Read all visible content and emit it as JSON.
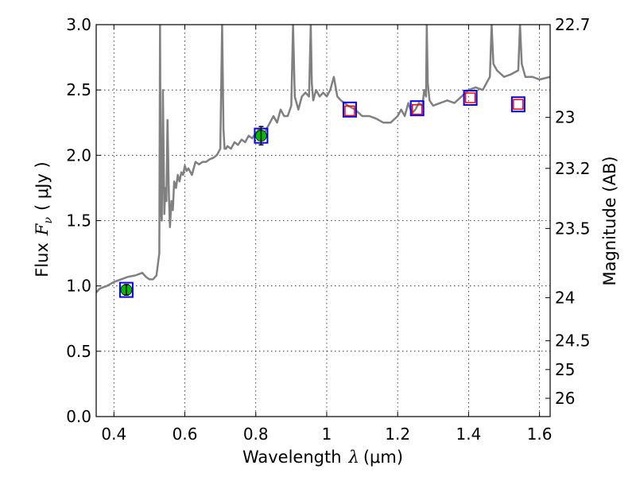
{
  "chart_data": {
    "type": "line",
    "xlabel": "Wavelength",
    "xlabel_symbol": "λ",
    "xlabel_unit": "(μm)",
    "ylabel": "Flux",
    "ylabel_symbol": "F",
    "ylabel_subscript": "ν",
    "ylabel_unit": "( μJy )",
    "y2label": "Magnitude (AB)",
    "xlim": [
      0.35,
      1.63
    ],
    "ylim": [
      0.0,
      3.0
    ],
    "grid": true,
    "x_ticks": [
      0.4,
      0.6,
      0.8,
      1.0,
      1.2,
      1.4,
      1.6
    ],
    "x_tick_labels": [
      "0.4",
      "0.6",
      "0.8",
      "1",
      "1.2",
      "1.4",
      "1.6"
    ],
    "y_ticks": [
      0.0,
      0.5,
      1.0,
      1.5,
      2.0,
      2.5,
      3.0
    ],
    "y_tick_labels": [
      "0.0",
      "0.5",
      "1.0",
      "1.5",
      "2.0",
      "2.5",
      "3.0"
    ],
    "y2_ticks": [
      {
        "label": "22.7",
        "flux": 3.0
      },
      {
        "label": "23",
        "flux": 2.29
      },
      {
        "label": "23.2",
        "flux": 1.9
      },
      {
        "label": "23.5",
        "flux": 1.44
      },
      {
        "label": "24",
        "flux": 0.91
      },
      {
        "label": "24.5",
        "flux": 0.58
      },
      {
        "label": "25",
        "flux": 0.36
      },
      {
        "label": "26",
        "flux": 0.14
      }
    ],
    "series": [
      {
        "style": "model-spectrum",
        "color": "#808080",
        "x": [
          0.35,
          0.36,
          0.38,
          0.4,
          0.42,
          0.44,
          0.46,
          0.48,
          0.49,
          0.5,
          0.51,
          0.52,
          0.528,
          0.53,
          0.532,
          0.535,
          0.538,
          0.542,
          0.545,
          0.548,
          0.551,
          0.555,
          0.558,
          0.562,
          0.566,
          0.57,
          0.575,
          0.58,
          0.585,
          0.59,
          0.595,
          0.6,
          0.605,
          0.61,
          0.62,
          0.63,
          0.64,
          0.65,
          0.66,
          0.67,
          0.68,
          0.69,
          0.7,
          0.705,
          0.709,
          0.712,
          0.716,
          0.72,
          0.73,
          0.74,
          0.75,
          0.76,
          0.77,
          0.78,
          0.79,
          0.8,
          0.81,
          0.82,
          0.83,
          0.84,
          0.85,
          0.86,
          0.87,
          0.88,
          0.89,
          0.9,
          0.905,
          0.91,
          0.915,
          0.92,
          0.93,
          0.94,
          0.95,
          0.955,
          0.958,
          0.962,
          0.97,
          0.98,
          0.99,
          1.0,
          1.01,
          1.02,
          1.03,
          1.04,
          1.05,
          1.06,
          1.08,
          1.1,
          1.12,
          1.14,
          1.16,
          1.18,
          1.2,
          1.21,
          1.22,
          1.23,
          1.24,
          1.25,
          1.26,
          1.27,
          1.275,
          1.28,
          1.282,
          1.285,
          1.29,
          1.3,
          1.32,
          1.34,
          1.36,
          1.38,
          1.4,
          1.42,
          1.44,
          1.45,
          1.46,
          1.465,
          1.47,
          1.48,
          1.5,
          1.52,
          1.54,
          1.545,
          1.55,
          1.56,
          1.58,
          1.6,
          1.63
        ],
        "values": [
          0.95,
          0.98,
          1.0,
          1.03,
          1.05,
          1.07,
          1.08,
          1.1,
          1.07,
          1.05,
          1.05,
          1.08,
          1.25,
          3.0,
          1.6,
          1.5,
          2.5,
          1.55,
          1.75,
          1.65,
          2.27,
          1.7,
          1.45,
          1.65,
          1.58,
          1.8,
          1.75,
          1.85,
          1.8,
          1.87,
          1.85,
          1.92,
          1.88,
          1.9,
          1.85,
          1.95,
          1.93,
          1.95,
          1.95,
          1.97,
          1.98,
          2.0,
          2.05,
          3.0,
          2.2,
          2.05,
          2.05,
          2.07,
          2.05,
          2.1,
          2.08,
          2.12,
          2.1,
          2.15,
          2.13,
          2.17,
          2.2,
          2.15,
          2.2,
          2.25,
          2.3,
          2.25,
          2.35,
          2.3,
          2.3,
          2.38,
          3.0,
          2.45,
          2.4,
          2.35,
          2.45,
          2.48,
          2.45,
          3.0,
          2.55,
          2.42,
          2.5,
          2.45,
          2.48,
          2.45,
          2.5,
          2.6,
          2.45,
          2.42,
          2.4,
          2.38,
          2.35,
          2.3,
          2.3,
          2.28,
          2.25,
          2.25,
          2.3,
          2.35,
          2.3,
          2.4,
          2.32,
          2.35,
          2.4,
          2.38,
          2.5,
          2.45,
          3.0,
          2.55,
          2.42,
          2.38,
          2.4,
          2.42,
          2.4,
          2.45,
          2.5,
          2.52,
          2.5,
          2.55,
          2.6,
          3.0,
          2.7,
          2.65,
          2.6,
          2.62,
          2.65,
          3.0,
          2.7,
          2.6,
          2.6,
          2.58,
          2.6
        ]
      },
      {
        "style": "model-photometry",
        "color": "#0000ff",
        "x": [
          0.435,
          0.815,
          1.065,
          1.255,
          1.405,
          1.54
        ],
        "values": [
          0.97,
          2.15,
          2.35,
          2.36,
          2.44,
          2.39
        ]
      },
      {
        "style": "observed-detection",
        "color": "#00bb00",
        "x": [
          0.435,
          0.815
        ],
        "values": [
          0.97,
          2.15
        ],
        "errors": [
          0.04,
          0.07
        ]
      },
      {
        "style": "observed-upper-limit",
        "color": "#ff0000",
        "x": [
          1.065,
          1.255,
          1.405,
          1.54
        ],
        "values": [
          2.34,
          2.35,
          2.44,
          2.39
        ]
      }
    ]
  }
}
